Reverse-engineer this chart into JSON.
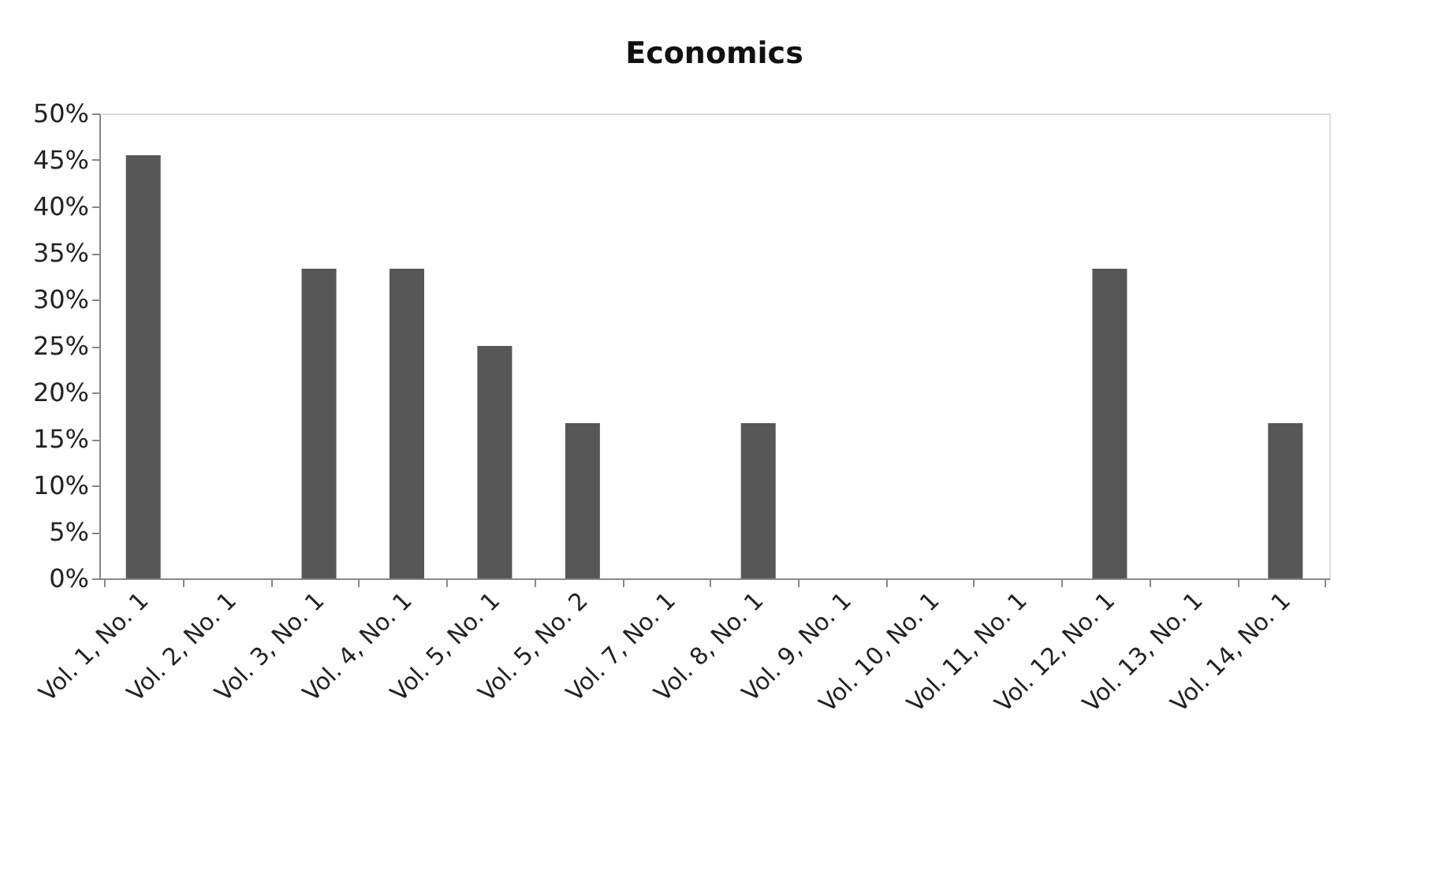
{
  "chart_data": {
    "type": "bar",
    "title": "Economics",
    "categories": [
      "Vol. 1, No. 1",
      "Vol. 2, No. 1",
      "Vol. 3, No. 1",
      "Vol. 4, No. 1",
      "Vol. 5, No. 1",
      "Vol. 5, No. 2",
      "Vol. 7, No. 1",
      "Vol. 8, No. 1",
      "Vol. 9, No. 1",
      "Vol. 10, No. 1",
      "Vol. 11, No. 1",
      "Vol. 12, No. 1",
      "Vol. 13, No. 1",
      "Vol. 14, No. 1"
    ],
    "values": [
      45.5,
      0,
      33.3,
      33.3,
      25,
      16.7,
      0,
      16.7,
      0,
      0,
      0,
      33.3,
      0,
      16.7
    ],
    "color": "#575757",
    "ylim": [
      0,
      50
    ],
    "yticks": [
      {
        "value": 0,
        "label": "0%"
      },
      {
        "value": 5,
        "label": "5%"
      },
      {
        "value": 10,
        "label": "10%"
      },
      {
        "value": 15,
        "label": "15%"
      },
      {
        "value": 20,
        "label": "20%"
      },
      {
        "value": 25,
        "label": "25%"
      },
      {
        "value": 30,
        "label": "30%"
      },
      {
        "value": 35,
        "label": "35%"
      },
      {
        "value": 40,
        "label": "40%"
      },
      {
        "value": 45,
        "label": "45%"
      },
      {
        "value": 50,
        "label": "50%"
      }
    ],
    "grid": false
  }
}
